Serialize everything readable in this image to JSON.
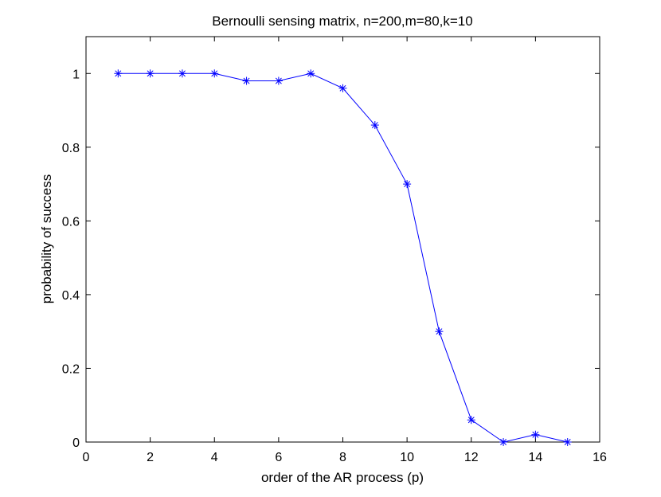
{
  "chart_data": {
    "type": "line",
    "title": "Bernoulli sensing matrix, n=200,m=80,k=10",
    "xlabel": "order of the AR process (p)",
    "ylabel": "probability of success",
    "xlim": [
      0,
      16
    ],
    "ylim": [
      0,
      1.1
    ],
    "xticks": [
      0,
      2,
      4,
      6,
      8,
      10,
      12,
      14,
      16
    ],
    "yticks": [
      0,
      0.2,
      0.4,
      0.6,
      0.8,
      1
    ],
    "x": [
      1,
      2,
      3,
      4,
      5,
      6,
      7,
      8,
      9,
      10,
      11,
      12,
      13,
      14,
      15
    ],
    "series": [
      {
        "values": [
          1,
          1,
          1,
          1,
          0.98,
          0.98,
          1,
          0.96,
          0.86,
          0.7,
          0.3,
          0.06,
          0,
          0.02,
          0
        ],
        "color": "#0000ff",
        "marker": "asterisk"
      }
    ],
    "grid": false
  }
}
